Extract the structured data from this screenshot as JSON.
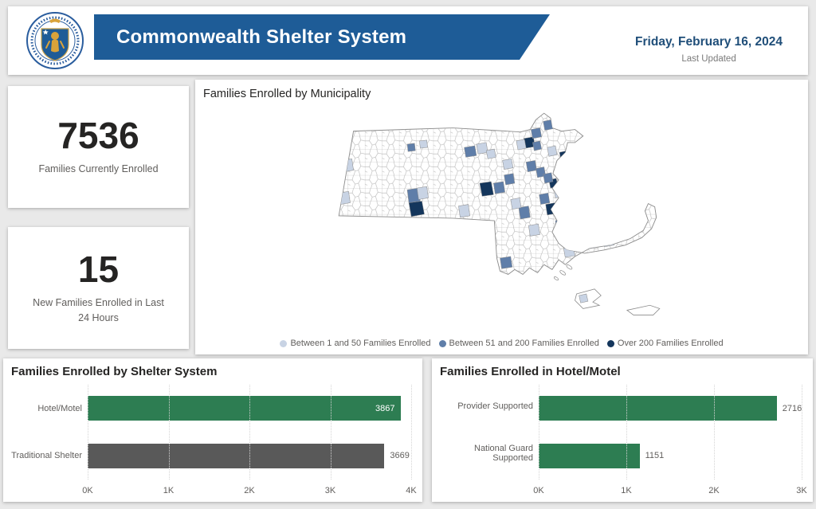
{
  "header": {
    "title": "Commonwealth Shelter System",
    "date": "Friday, February 16, 2024",
    "last_updated_label": "Last Updated"
  },
  "kpis": [
    {
      "value": "7536",
      "label": "Families Currently Enrolled"
    },
    {
      "value": "15",
      "label": "New Families Enrolled in Last 24 Hours"
    }
  ],
  "map": {
    "title": "Families Enrolled by Municipality",
    "legend": [
      {
        "label": "Between 1 and 50 Families Enrolled",
        "color": "#c8d3e4"
      },
      {
        "label": "Between 51 and 200 Families Enrolled",
        "color": "#5f7ea9"
      },
      {
        "label": "Over 200 Families Enrolled",
        "color": "#14365c"
      }
    ]
  },
  "chart_data": [
    {
      "type": "bar",
      "orientation": "horizontal",
      "title": "Families Enrolled by Shelter System",
      "categories": [
        "Hotel/Motel",
        "Traditional Shelter"
      ],
      "values": [
        3867,
        3669
      ],
      "colors": [
        "#2d7d52",
        "#595959"
      ],
      "xlim": [
        0,
        4000
      ],
      "ticks": [
        "0K",
        "1K",
        "2K",
        "3K",
        "4K"
      ],
      "grid": "dotted-vertical",
      "value_labels": true
    },
    {
      "type": "bar",
      "orientation": "horizontal",
      "title": "Families Enrolled in Hotel/Motel",
      "categories": [
        "Provider Supported",
        "National Guard Supported"
      ],
      "values": [
        2716,
        1151
      ],
      "colors": [
        "#2d7d52",
        "#2d7d52"
      ],
      "xlim": [
        0,
        3000
      ],
      "ticks": [
        "0K",
        "1K",
        "2K",
        "3K"
      ],
      "grid": "dotted-vertical",
      "value_labels": true
    }
  ]
}
